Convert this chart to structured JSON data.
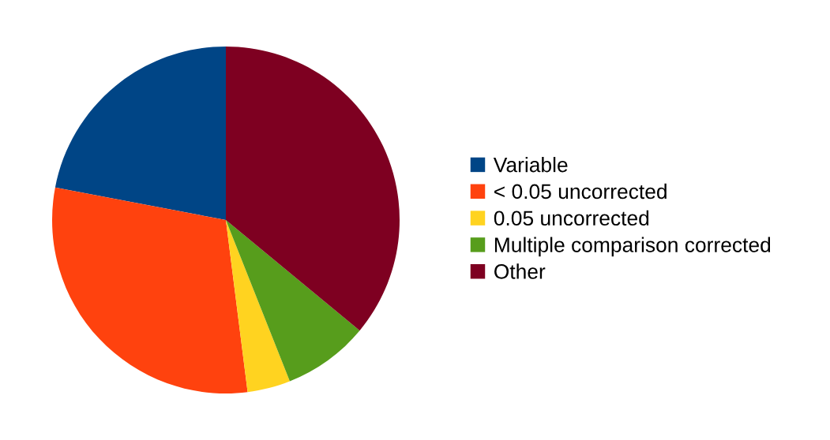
{
  "chart_data": {
    "type": "pie",
    "categories": [
      "Variable",
      "< 0.05 uncorrected",
      "0.05 uncorrected",
      "Multiple comparison corrected",
      "Other"
    ],
    "values": [
      22,
      30,
      4,
      8,
      36
    ],
    "colors": [
      "#004586",
      "#ff420e",
      "#ffd320",
      "#579d1c",
      "#7e0021"
    ],
    "legend": "right"
  }
}
